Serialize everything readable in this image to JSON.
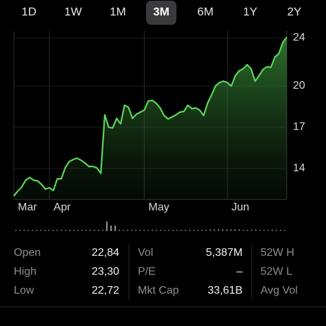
{
  "tabs": [
    "1D",
    "1W",
    "1M",
    "3M",
    "6M",
    "1Y",
    "2Y"
  ],
  "selected_tab": "3M",
  "chart_data": {
    "type": "line",
    "categories": [
      "Mar",
      null,
      null,
      null,
      null,
      null,
      null,
      null,
      null,
      "Apr",
      null,
      null,
      null,
      null,
      null,
      null,
      null,
      null,
      null,
      null,
      null,
      null,
      null,
      null,
      null,
      null,
      null,
      null,
      null,
      null,
      null,
      null,
      null,
      "May",
      null,
      null,
      null,
      null,
      null,
      null,
      null,
      null,
      null,
      null,
      null,
      null,
      null,
      null,
      null,
      null,
      null,
      null,
      null,
      null,
      "Jun",
      null,
      null,
      null,
      null,
      null,
      null,
      null,
      null,
      null,
      null,
      null,
      null,
      null,
      null,
      null
    ],
    "values": [
      12.0,
      12.35,
      12.65,
      13.15,
      13.35,
      13.15,
      13.1,
      12.85,
      12.5,
      12.6,
      12.4,
      13.25,
      13.25,
      14.05,
      14.5,
      14.65,
      14.75,
      14.6,
      14.4,
      14.15,
      14.15,
      14.05,
      13.65,
      17.9,
      17.0,
      16.95,
      17.65,
      17.25,
      18.6,
      18.45,
      17.65,
      17.95,
      18.1,
      18.25,
      18.9,
      18.95,
      18.75,
      18.4,
      17.85,
      17.6,
      17.75,
      17.9,
      18.1,
      18.15,
      18.6,
      18.35,
      18.4,
      18.25,
      17.85,
      18.75,
      19.35,
      20.0,
      20.25,
      20.35,
      20.25,
      20.0,
      20.75,
      21.1,
      21.25,
      21.55,
      21.25,
      20.35,
      20.75,
      21.2,
      21.4,
      21.35,
      22.1,
      22.35,
      23.15,
      23.55
    ],
    "color": "#5ed65b",
    "ylim": [
      11.75,
      24
    ],
    "yticks": [
      14,
      17,
      20,
      {
        "value": 23.5,
        "label": "24"
      }
    ],
    "grid": true
  },
  "stats": [
    [
      {
        "label": "Open",
        "value": "22,84"
      },
      {
        "label": "Vol",
        "value": "5,387M"
      },
      {
        "label": "52W H"
      }
    ],
    [
      {
        "label": "High",
        "value": "23,30"
      },
      {
        "label": "P/E",
        "value": "–"
      },
      {
        "label": "52W L"
      }
    ],
    [
      {
        "label": "Low",
        "value": "22,72"
      },
      {
        "label": "Mkt Cap",
        "value": "33,61B"
      },
      {
        "label": "Avg Vol"
      }
    ]
  ]
}
